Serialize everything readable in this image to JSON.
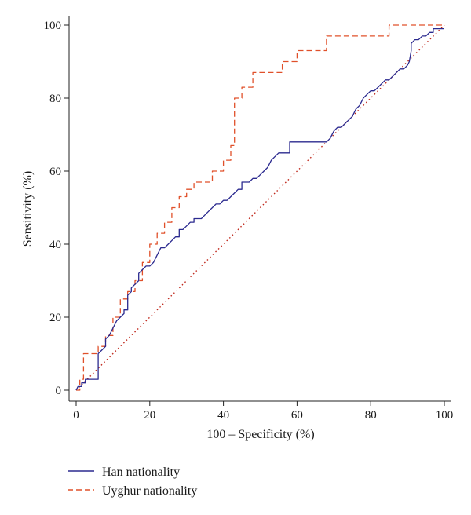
{
  "chart_data": {
    "type": "line",
    "xlabel": "100 – Specificity (%)",
    "ylabel": "Sensitivity (%)",
    "xlim": [
      0,
      100
    ],
    "ylim": [
      0,
      100
    ],
    "xticks": [
      0,
      20,
      40,
      60,
      80,
      100
    ],
    "yticks": [
      0,
      20,
      40,
      60,
      80,
      100
    ],
    "grid": false,
    "legend_position": "bottom-left",
    "series": [
      {
        "name": "Han nationality",
        "color": "#2b2a8f",
        "style": "solid",
        "x": [
          0,
          0.5,
          1.5,
          1.5,
          2.5,
          2.5,
          3.5,
          3.5,
          6,
          6,
          7,
          8,
          8,
          9,
          10,
          11,
          12,
          13,
          13,
          14,
          14,
          15,
          15,
          16,
          17,
          17,
          18,
          19,
          20,
          21,
          22,
          23,
          24,
          25,
          26,
          27,
          28,
          28,
          29,
          30,
          30,
          31,
          32,
          32,
          33,
          34,
          35,
          36,
          37,
          38,
          39,
          40,
          41,
          42,
          43,
          44,
          45,
          45,
          46,
          47,
          48,
          49,
          50,
          51,
          52,
          53,
          54,
          55,
          56,
          57,
          58,
          58,
          59,
          60,
          61,
          62,
          63,
          64,
          65,
          66,
          67,
          68,
          69,
          70,
          71,
          72,
          73,
          74,
          75,
          76,
          77,
          78,
          79,
          80,
          81,
          82,
          83,
          84,
          85,
          86,
          87,
          88,
          89,
          90,
          90.5,
          91,
          91,
          92,
          93,
          94,
          95,
          96,
          97,
          97,
          98,
          99,
          100
        ],
        "y": [
          0,
          1,
          1,
          2,
          2,
          3,
          3,
          3,
          3,
          10,
          11,
          12,
          14,
          15,
          17,
          19,
          20,
          21,
          22,
          22,
          26,
          27,
          28,
          29,
          30,
          32,
          33,
          34,
          34,
          35,
          37,
          39,
          39,
          40,
          41,
          42,
          42,
          44,
          44,
          45,
          45,
          46,
          46,
          47,
          47,
          47,
          48,
          49,
          50,
          51,
          51,
          52,
          52,
          53,
          54,
          55,
          55,
          57,
          57,
          57,
          58,
          58,
          59,
          60,
          61,
          63,
          64,
          65,
          65,
          65,
          65,
          68,
          68,
          68,
          68,
          68,
          68,
          68,
          68,
          68,
          68,
          68,
          69,
          71,
          72,
          72,
          73,
          74,
          75,
          77,
          78,
          80,
          81,
          82,
          82,
          83,
          84,
          85,
          85,
          86,
          87,
          88,
          88,
          89,
          90,
          93,
          95,
          96,
          96,
          97,
          97,
          98,
          98,
          99,
          99,
          99,
          99
        ]
      },
      {
        "name": "Uyghur nationality",
        "color": "#e0502a",
        "style": "dashed",
        "x": [
          0,
          1,
          1,
          2,
          2,
          6,
          6,
          8,
          8,
          10,
          10,
          12,
          12,
          14,
          14,
          16,
          16,
          18,
          18,
          20,
          20,
          22,
          22,
          24,
          24,
          26,
          26,
          28,
          28,
          30,
          30,
          32,
          32,
          37,
          37,
          40,
          40,
          42,
          42,
          43,
          43,
          45,
          45,
          48,
          48,
          52,
          52,
          56,
          56,
          60,
          60,
          63,
          63,
          68,
          68,
          80,
          80,
          85,
          85,
          90,
          90,
          100
        ],
        "y": [
          0,
          0,
          3,
          3,
          10,
          10,
          12,
          12,
          15,
          15,
          20,
          20,
          25,
          25,
          27,
          27,
          30,
          30,
          35,
          35,
          40,
          40,
          43,
          43,
          46,
          46,
          50,
          50,
          53,
          53,
          55,
          55,
          57,
          57,
          60,
          60,
          63,
          63,
          67,
          67,
          80,
          80,
          83,
          83,
          87,
          87,
          87,
          87,
          90,
          90,
          93,
          93,
          93,
          93,
          97,
          97,
          97,
          97,
          100,
          100,
          100,
          100
        ]
      },
      {
        "name": "",
        "color": "#c0281c",
        "style": "dotted",
        "x": [
          0,
          100
        ],
        "y": [
          0,
          100
        ]
      }
    ]
  }
}
